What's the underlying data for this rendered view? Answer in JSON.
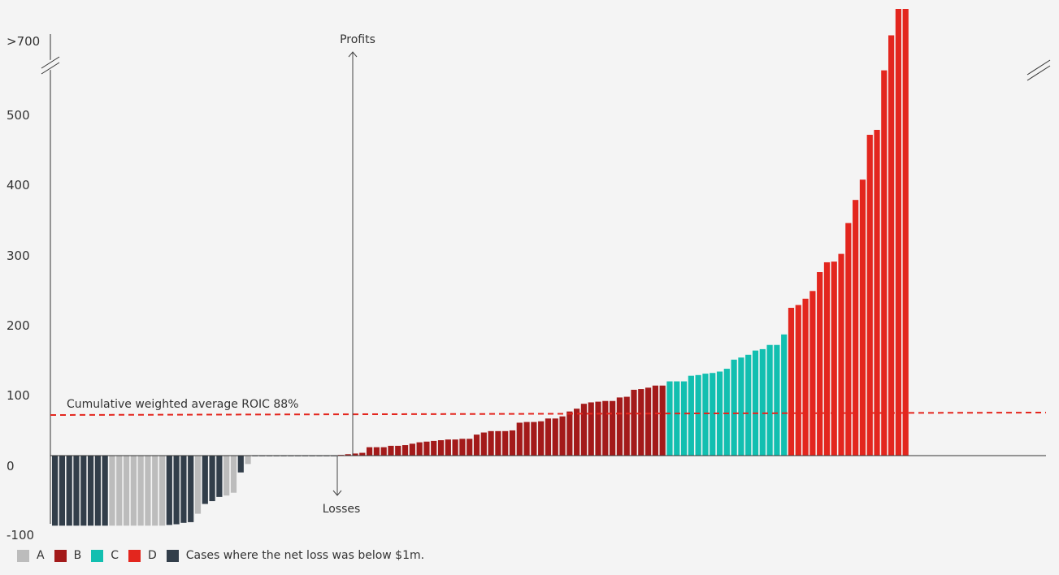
{
  "chart_data": {
    "type": "bar",
    "ylim": [
      -100,
      700
    ],
    "y_ticks": [
      ">700",
      "500",
      "400",
      "300",
      "200",
      "100",
      "0",
      "-100"
    ],
    "title": "",
    "xlabel": "",
    "ylabel": "",
    "colors": {
      "A": "#bcbcbc",
      "B": "#a31a1a",
      "C": "#12bfb0",
      "D": "#e3261e",
      "E": "#323e4a"
    },
    "legend": [
      {
        "key": "A",
        "label": "A"
      },
      {
        "key": "B",
        "label": "B"
      },
      {
        "key": "C",
        "label": "C"
      },
      {
        "key": "D",
        "label": "D"
      },
      {
        "key": "E",
        "label": "Cases where the net loss was below $1m."
      }
    ],
    "average_line": {
      "label": "Cumulative weighted average ROIC 88%",
      "value": 88
    },
    "annotations": {
      "profits": "Profits",
      "losses": "Losses"
    },
    "bars": [
      {
        "v": -100,
        "c": "E"
      },
      {
        "v": -100,
        "c": "E"
      },
      {
        "v": -100,
        "c": "E"
      },
      {
        "v": -100,
        "c": "E"
      },
      {
        "v": -100,
        "c": "E"
      },
      {
        "v": -100,
        "c": "E"
      },
      {
        "v": -100,
        "c": "E"
      },
      {
        "v": -100,
        "c": "E"
      },
      {
        "v": -100,
        "c": "A"
      },
      {
        "v": -100,
        "c": "A"
      },
      {
        "v": -100,
        "c": "A"
      },
      {
        "v": -100,
        "c": "A"
      },
      {
        "v": -100,
        "c": "A"
      },
      {
        "v": -100,
        "c": "A"
      },
      {
        "v": -100,
        "c": "A"
      },
      {
        "v": -100,
        "c": "A"
      },
      {
        "v": -99,
        "c": "E"
      },
      {
        "v": -98,
        "c": "E"
      },
      {
        "v": -96,
        "c": "E"
      },
      {
        "v": -95,
        "c": "E"
      },
      {
        "v": -83,
        "c": "A"
      },
      {
        "v": -69,
        "c": "E"
      },
      {
        "v": -65,
        "c": "E"
      },
      {
        "v": -59,
        "c": "E"
      },
      {
        "v": -57,
        "c": "A"
      },
      {
        "v": -53,
        "c": "A"
      },
      {
        "v": -24,
        "c": "E"
      },
      {
        "v": -12,
        "c": "A"
      },
      {
        "v": 0,
        "c": "E"
      },
      {
        "v": 0,
        "c": "E"
      },
      {
        "v": 0,
        "c": "E"
      },
      {
        "v": 0,
        "c": "E"
      },
      {
        "v": 0,
        "c": "E"
      },
      {
        "v": 0,
        "c": "E"
      },
      {
        "v": 0,
        "c": "E"
      },
      {
        "v": 0,
        "c": "E"
      },
      {
        "v": 0,
        "c": "E"
      },
      {
        "v": 0,
        "c": "E"
      },
      {
        "v": 0,
        "c": "E"
      },
      {
        "v": 0,
        "c": "E"
      },
      {
        "v": 1,
        "c": "B"
      },
      {
        "v": 2,
        "c": "B"
      },
      {
        "v": 3,
        "c": "B"
      },
      {
        "v": 4,
        "c": "B"
      },
      {
        "v": 12,
        "c": "B"
      },
      {
        "v": 12,
        "c": "B"
      },
      {
        "v": 12,
        "c": "B"
      },
      {
        "v": 14,
        "c": "B"
      },
      {
        "v": 14,
        "c": "B"
      },
      {
        "v": 15,
        "c": "B"
      },
      {
        "v": 17,
        "c": "B"
      },
      {
        "v": 19,
        "c": "B"
      },
      {
        "v": 20,
        "c": "B"
      },
      {
        "v": 21,
        "c": "B"
      },
      {
        "v": 22,
        "c": "B"
      },
      {
        "v": 23,
        "c": "B"
      },
      {
        "v": 23,
        "c": "B"
      },
      {
        "v": 24,
        "c": "B"
      },
      {
        "v": 24,
        "c": "B"
      },
      {
        "v": 30,
        "c": "B"
      },
      {
        "v": 33,
        "c": "B"
      },
      {
        "v": 35,
        "c": "B"
      },
      {
        "v": 35,
        "c": "B"
      },
      {
        "v": 35,
        "c": "B"
      },
      {
        "v": 36,
        "c": "B"
      },
      {
        "v": 47,
        "c": "B"
      },
      {
        "v": 48,
        "c": "B"
      },
      {
        "v": 48,
        "c": "B"
      },
      {
        "v": 49,
        "c": "B"
      },
      {
        "v": 53,
        "c": "B"
      },
      {
        "v": 53,
        "c": "B"
      },
      {
        "v": 56,
        "c": "B"
      },
      {
        "v": 63,
        "c": "B"
      },
      {
        "v": 67,
        "c": "B"
      },
      {
        "v": 74,
        "c": "B"
      },
      {
        "v": 76,
        "c": "B"
      },
      {
        "v": 77,
        "c": "B"
      },
      {
        "v": 78,
        "c": "B"
      },
      {
        "v": 78,
        "c": "B"
      },
      {
        "v": 83,
        "c": "B"
      },
      {
        "v": 84,
        "c": "B"
      },
      {
        "v": 94,
        "c": "B"
      },
      {
        "v": 95,
        "c": "B"
      },
      {
        "v": 97,
        "c": "B"
      },
      {
        "v": 100,
        "c": "B"
      },
      {
        "v": 100,
        "c": "B"
      },
      {
        "v": 106,
        "c": "C"
      },
      {
        "v": 106,
        "c": "C"
      },
      {
        "v": 106,
        "c": "C"
      },
      {
        "v": 114,
        "c": "C"
      },
      {
        "v": 115,
        "c": "C"
      },
      {
        "v": 117,
        "c": "C"
      },
      {
        "v": 118,
        "c": "C"
      },
      {
        "v": 120,
        "c": "C"
      },
      {
        "v": 124,
        "c": "C"
      },
      {
        "v": 137,
        "c": "C"
      },
      {
        "v": 140,
        "c": "C"
      },
      {
        "v": 144,
        "c": "C"
      },
      {
        "v": 150,
        "c": "C"
      },
      {
        "v": 152,
        "c": "C"
      },
      {
        "v": 158,
        "c": "C"
      },
      {
        "v": 158,
        "c": "C"
      },
      {
        "v": 173,
        "c": "C"
      },
      {
        "v": 211,
        "c": "D"
      },
      {
        "v": 215,
        "c": "D"
      },
      {
        "v": 224,
        "c": "D"
      },
      {
        "v": 235,
        "c": "D"
      },
      {
        "v": 262,
        "c": "D"
      },
      {
        "v": 276,
        "c": "D"
      },
      {
        "v": 277,
        "c": "D"
      },
      {
        "v": 288,
        "c": "D"
      },
      {
        "v": 332,
        "c": "D"
      },
      {
        "v": 365,
        "c": "D"
      },
      {
        "v": 394,
        "c": "D"
      },
      {
        "v": 458,
        "c": "D"
      },
      {
        "v": 465,
        "c": "D"
      },
      {
        "v": 550,
        "c": "D"
      },
      {
        "v": 600,
        "c": "D"
      },
      {
        "v": 720,
        "c": "D"
      },
      {
        "v": 720,
        "c": "D"
      }
    ]
  }
}
